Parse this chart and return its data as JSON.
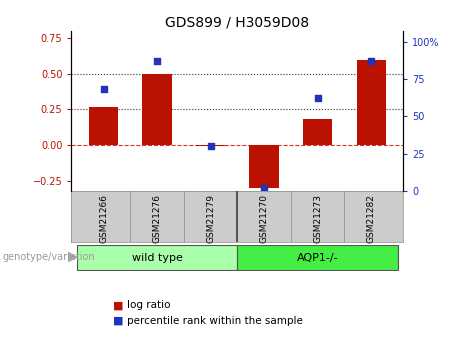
{
  "title": "GDS899 / H3059D08",
  "samples": [
    "GSM21266",
    "GSM21276",
    "GSM21279",
    "GSM21270",
    "GSM21273",
    "GSM21282"
  ],
  "log_ratio": [
    0.27,
    0.5,
    -0.01,
    -0.3,
    0.18,
    0.6
  ],
  "percentile_rank": [
    68,
    87,
    30,
    2,
    62,
    87
  ],
  "groups": [
    {
      "label": "wild type",
      "start": 0,
      "end": 3,
      "color": "#aaffaa"
    },
    {
      "label": "AQP1-/-",
      "start": 3,
      "end": 6,
      "color": "#44ee44"
    }
  ],
  "bar_color": "#bb1100",
  "dot_color": "#2233bb",
  "ylim_left": [
    -0.325,
    0.8
  ],
  "ylim_right": [
    0,
    107
  ],
  "yticks_left": [
    -0.25,
    0.0,
    0.25,
    0.5,
    0.75
  ],
  "yticks_right": [
    0,
    25,
    50,
    75,
    100
  ],
  "hlines": [
    0.0,
    0.25,
    0.5
  ],
  "hline_styles": [
    "--",
    ":",
    ":"
  ],
  "hline_colors": [
    "#cc3333",
    "#333333",
    "#333333"
  ],
  "background_color": "#ffffff",
  "title_fontsize": 10,
  "tick_fontsize": 7,
  "label_fontsize": 7.5,
  "group_colors_light": "#ccffcc",
  "group_colors_dark": "#44ee44",
  "xtick_bg": "#cccccc"
}
